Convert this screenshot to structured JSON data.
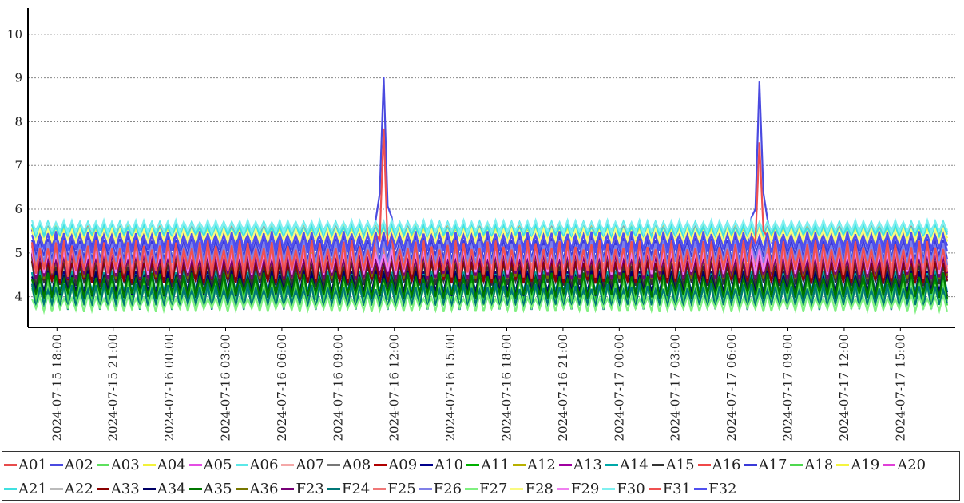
{
  "chart_data": {
    "type": "line",
    "title": "",
    "xlabel": "",
    "ylabel": "",
    "ylim": [
      3.3,
      10.6
    ],
    "yticks": [
      4,
      5,
      6,
      7,
      8,
      9,
      10
    ],
    "grid": "horizontal dotted",
    "legend_position": "bottom",
    "x_range": [
      "2024-07-15 16:40",
      "2024-07-17 17:30"
    ],
    "x_ticks": [
      "2024-07-15 18:00",
      "2024-07-15 21:00",
      "2024-07-16 00:00",
      "2024-07-16 03:00",
      "2024-07-16 06:00",
      "2024-07-16 09:00",
      "2024-07-16 12:00",
      "2024-07-16 15:00",
      "2024-07-16 18:00",
      "2024-07-16 21:00",
      "2024-07-17 00:00",
      "2024-07-17 03:00",
      "2024-07-17 06:00",
      "2024-07-17 09:00",
      "2024-07-17 12:00",
      "2024-07-17 15:00"
    ],
    "series": [
      {
        "name": "A01",
        "color": "#e74c4c",
        "base": 5.55,
        "amp": 0.12,
        "spikes": [],
        "spike_amp": 0
      },
      {
        "name": "A02",
        "color": "#4a4ae0",
        "base": 5.3,
        "amp": 0.25,
        "spikes": [
          "2024-07-16 11:25",
          "2024-07-17 07:30"
        ],
        "spike_amp": 3.9
      },
      {
        "name": "A03",
        "color": "#5ee05e",
        "base": 4.0,
        "amp": 0.2,
        "spikes": [],
        "spike_amp": 0
      },
      {
        "name": "A04",
        "color": "#f2f23a",
        "base": 5.45,
        "amp": 0.15,
        "spikes": [],
        "spike_amp": 0
      },
      {
        "name": "A05",
        "color": "#e44de4",
        "base": 4.8,
        "amp": 0.3,
        "spikes": [],
        "spike_amp": 0
      },
      {
        "name": "A06",
        "color": "#5ce8e8",
        "base": 5.6,
        "amp": 0.12,
        "spikes": [],
        "spike_amp": 0
      },
      {
        "name": "A07",
        "color": "#f4a8a8",
        "base": 5.0,
        "amp": 0.3,
        "spikes": [],
        "spike_amp": 0
      },
      {
        "name": "A08",
        "color": "#777777",
        "base": 4.6,
        "amp": 0.3,
        "spikes": [],
        "spike_amp": 0
      },
      {
        "name": "A09",
        "color": "#b00000",
        "base": 4.7,
        "amp": 0.3,
        "spikes": [],
        "spike_amp": 0
      },
      {
        "name": "A10",
        "color": "#00008b",
        "base": 4.3,
        "amp": 0.3,
        "spikes": [],
        "spike_amp": 0
      },
      {
        "name": "A11",
        "color": "#00b000",
        "base": 4.2,
        "amp": 0.3,
        "spikes": [],
        "spike_amp": 0
      },
      {
        "name": "A12",
        "color": "#b8b000",
        "base": 4.8,
        "amp": 0.3,
        "spikes": [],
        "spike_amp": 0
      },
      {
        "name": "A13",
        "color": "#a000a0",
        "base": 4.7,
        "amp": 0.3,
        "spikes": [],
        "spike_amp": 0
      },
      {
        "name": "A14",
        "color": "#00a8a8",
        "base": 4.3,
        "amp": 0.3,
        "spikes": [],
        "spike_amp": 0
      },
      {
        "name": "A15",
        "color": "#333333",
        "base": 4.5,
        "amp": 0.3,
        "spikes": [],
        "spike_amp": 0
      },
      {
        "name": "A16",
        "color": "#f04848",
        "base": 4.9,
        "amp": 0.3,
        "spikes": [],
        "spike_amp": 0
      },
      {
        "name": "A17",
        "color": "#3a3ad8",
        "base": 5.1,
        "amp": 0.3,
        "spikes": [],
        "spike_amp": 0
      },
      {
        "name": "A18",
        "color": "#4fd84f",
        "base": 4.1,
        "amp": 0.3,
        "spikes": [],
        "spike_amp": 0
      },
      {
        "name": "A19",
        "color": "#f5f540",
        "base": 5.4,
        "amp": 0.15,
        "spikes": [],
        "spike_amp": 0
      },
      {
        "name": "A20",
        "color": "#e040d8",
        "base": 4.7,
        "amp": 0.3,
        "spikes": [],
        "spike_amp": 0
      },
      {
        "name": "A21",
        "color": "#40e0e0",
        "base": 5.5,
        "amp": 0.15,
        "spikes": [],
        "spike_amp": 0
      },
      {
        "name": "A22",
        "color": "#bbbbbb",
        "base": 4.7,
        "amp": 0.3,
        "spikes": [],
        "spike_amp": 0
      },
      {
        "name": "A33",
        "color": "#8b0000",
        "base": 4.6,
        "amp": 0.3,
        "spikes": [],
        "spike_amp": 0
      },
      {
        "name": "A34",
        "color": "#000066",
        "base": 4.3,
        "amp": 0.3,
        "spikes": [],
        "spike_amp": 0
      },
      {
        "name": "A35",
        "color": "#007700",
        "base": 4.25,
        "amp": 0.3,
        "spikes": [],
        "spike_amp": 0
      },
      {
        "name": "A36",
        "color": "#777700",
        "base": 4.7,
        "amp": 0.3,
        "spikes": [],
        "spike_amp": 0
      },
      {
        "name": "F23",
        "color": "#770077",
        "base": 4.7,
        "amp": 0.3,
        "spikes": [],
        "spike_amp": 0
      },
      {
        "name": "F24",
        "color": "#007777",
        "base": 4.0,
        "amp": 0.3,
        "spikes": [],
        "spike_amp": 0
      },
      {
        "name": "F25",
        "color": "#f07878",
        "base": 4.9,
        "amp": 0.3,
        "spikes": [],
        "spike_amp": 0
      },
      {
        "name": "F26",
        "color": "#8080e8",
        "base": 5.0,
        "amp": 0.3,
        "spikes": [],
        "spike_amp": 0
      },
      {
        "name": "F27",
        "color": "#80f080",
        "base": 3.85,
        "amp": 0.2,
        "spikes": [],
        "spike_amp": 0
      },
      {
        "name": "F28",
        "color": "#fafa80",
        "base": 5.4,
        "amp": 0.15,
        "spikes": [],
        "spike_amp": 0
      },
      {
        "name": "F29",
        "color": "#f080f0",
        "base": 4.8,
        "amp": 0.3,
        "spikes": [],
        "spike_amp": 0
      },
      {
        "name": "F30",
        "color": "#80f0f0",
        "base": 5.6,
        "amp": 0.15,
        "spikes": [],
        "spike_amp": 0
      },
      {
        "name": "F31",
        "color": "#f05050",
        "base": 4.85,
        "amp": 0.45,
        "spikes": [
          "2024-07-16 11:25",
          "2024-07-17 07:30"
        ],
        "spike_amp": 2.8
      },
      {
        "name": "F32",
        "color": "#5050f0",
        "base": 5.25,
        "amp": 0.25,
        "spikes": [],
        "spike_amp": 0
      }
    ]
  }
}
